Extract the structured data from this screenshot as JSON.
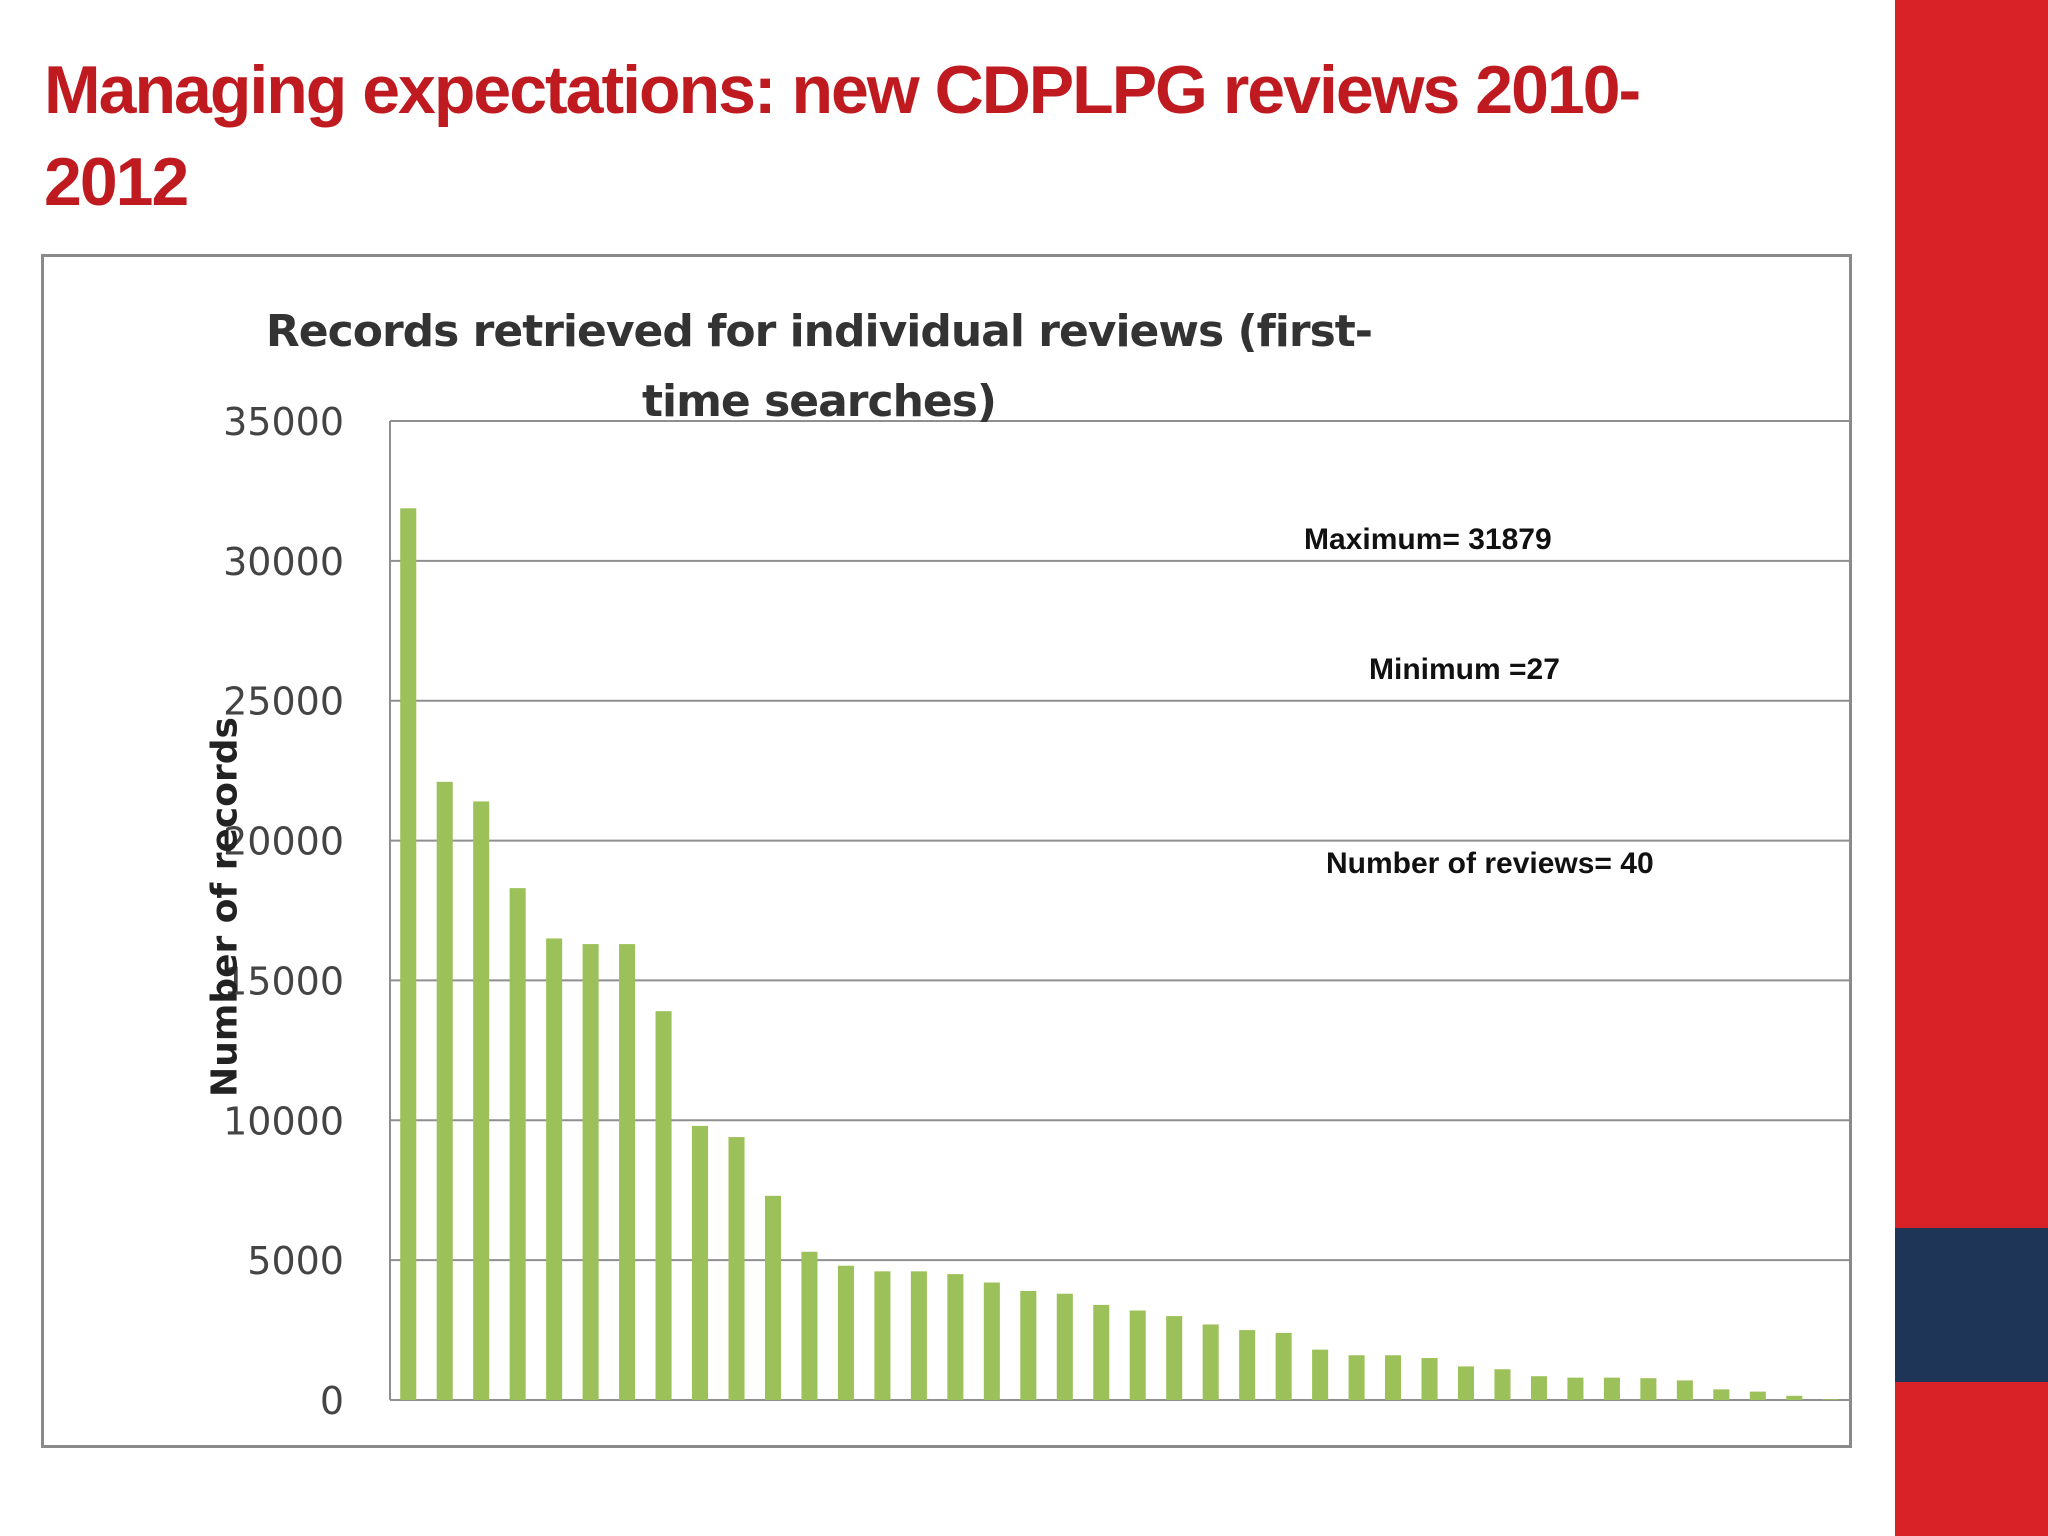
{
  "slide": {
    "title": "Managing expectations: new CDPLPG reviews 2010-2012"
  },
  "colors": {
    "title": "#bf1a20",
    "band_red": "#d92128",
    "band_navy": "#1f3557",
    "bar": "#9dc15a",
    "grid": "#8f8f8f"
  },
  "chart_data": {
    "type": "bar",
    "title": "Records retrieved for individual  reviews (first-time searches)",
    "ylabel": "Number of records",
    "xlabel": "",
    "ylim": [
      0,
      35000
    ],
    "yticks": [
      0,
      5000,
      10000,
      15000,
      20000,
      25000,
      30000,
      35000
    ],
    "grid": true,
    "values": [
      31879,
      22100,
      21400,
      18300,
      16500,
      16300,
      16300,
      13900,
      9800,
      9400,
      7300,
      5300,
      4800,
      4600,
      4600,
      4500,
      4200,
      3900,
      3800,
      3400,
      3200,
      3000,
      2700,
      2500,
      2400,
      1800,
      1600,
      1600,
      1500,
      1200,
      1100,
      850,
      800,
      800,
      780,
      700,
      380,
      300,
      150,
      27
    ],
    "annotations": {
      "maximum": "Maximum= 31879",
      "minimum": "Minimum =27",
      "count": "Number of reviews= 40"
    }
  }
}
